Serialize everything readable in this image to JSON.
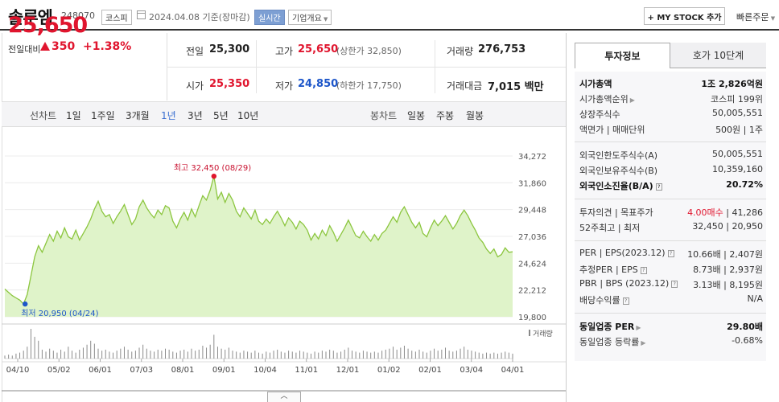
{
  "header": {
    "name": "솔루엠",
    "code": "248070",
    "market": "코스피",
    "date": "2024.04.08",
    "basis": "기준(장마감)",
    "realtime": "실시간",
    "company": "기업개요",
    "mystock": "+ MY STOCK 추가",
    "quick_order": "빠른주문"
  },
  "price": {
    "current": "25,650",
    "change_label": "전일대비",
    "change": "350",
    "rate": "+1.38%"
  },
  "quote": {
    "prev_label": "전일",
    "prev": "25,300",
    "high_label": "고가",
    "high": "25,650",
    "upper": "(상한가 32,850)",
    "volume_label": "거래량",
    "volume": "276,753",
    "open_label": "시가",
    "open": "25,350",
    "low_label": "저가",
    "low": "24,850",
    "lower": "(하한가 17,750)",
    "amount_label": "거래대금",
    "amount": "7,015",
    "amount_unit": "백만"
  },
  "period_bar": {
    "line_label": "선차트",
    "periods": [
      "1일",
      "1주일",
      "3개월",
      "1년",
      "3년",
      "5년",
      "10년"
    ],
    "selected": "1년",
    "candle_label": "봉차트",
    "candles": [
      "일봉",
      "주봉",
      "월봉"
    ]
  },
  "chart_data": {
    "type": "area",
    "x_ticks": [
      "04/10",
      "05/02",
      "06/01",
      "07/03",
      "08/01",
      "09/01",
      "10/04",
      "11/01",
      "12/01",
      "01/02",
      "02/01",
      "03/04",
      "04/01"
    ],
    "y_ticks": [
      "34,272",
      "31,860",
      "29,448",
      "27,036",
      "24,624",
      "22,212",
      "19,800"
    ],
    "ylim": [
      19800,
      34272
    ],
    "max_label": "최고 32,450 (08/29)",
    "min_label": "최저 20,950 (04/24)",
    "volume_label": "거래량",
    "line_color": "#8cc63f",
    "fill_color": "#dff3c9",
    "series": [
      {
        "values": [
          22300,
          22000,
          21700,
          21500,
          21300,
          20950,
          21800,
          23500,
          25200,
          26200,
          25600,
          26400,
          27200,
          26600,
          27500,
          26900,
          27800,
          27000,
          26800,
          27600,
          26700,
          27300,
          27900,
          28600,
          29500,
          30200,
          29300,
          28800,
          29000,
          28200,
          28800,
          29300,
          29900,
          29000,
          28100,
          28600,
          29700,
          30300,
          29600,
          29100,
          28700,
          29400,
          29000,
          29800,
          29600,
          28400,
          27800,
          28600,
          29200,
          28500,
          29500,
          28800,
          29800,
          30700,
          30300,
          31200,
          32450,
          30400,
          31000,
          30100,
          30900,
          30300,
          29300,
          28800,
          29600,
          29100,
          28600,
          29400,
          28400,
          28100,
          28600,
          28200,
          28800,
          29300,
          28700,
          28000,
          28700,
          28300,
          27700,
          28400,
          28100,
          27600,
          26700,
          27300,
          26800,
          27600,
          27100,
          28000,
          27400,
          26600,
          27200,
          27800,
          28500,
          27800,
          27100,
          26900,
          27500,
          27000,
          26600,
          27200,
          26700,
          27300,
          27600,
          28200,
          28800,
          28300,
          29200,
          29700,
          29000,
          28300,
          27800,
          28300,
          27300,
          27000,
          27800,
          28500,
          28000,
          28400,
          28900,
          28300,
          27700,
          28200,
          28900,
          29400,
          28900,
          28200,
          27600,
          26900,
          26500,
          25900,
          25500,
          25900,
          25200,
          25400,
          26000,
          25600,
          25650
        ]
      }
    ],
    "volume": [
      3,
      4,
      3,
      5,
      6,
      8,
      12,
      30,
      22,
      18,
      9,
      7,
      10,
      8,
      6,
      9,
      7,
      12,
      8,
      6,
      9,
      11,
      14,
      18,
      15,
      10,
      8,
      9,
      7,
      6,
      8,
      10,
      12,
      9,
      7,
      8,
      11,
      14,
      10,
      8,
      7,
      9,
      8,
      10,
      9,
      7,
      6,
      8,
      9,
      7,
      10,
      8,
      9,
      13,
      11,
      14,
      24,
      12,
      10,
      9,
      11,
      8,
      7,
      6,
      8,
      7,
      6,
      8,
      6,
      5,
      7,
      6,
      8,
      9,
      7,
      6,
      8,
      7,
      6,
      8,
      7,
      6,
      5,
      7,
      6,
      8,
      7,
      9,
      8,
      6,
      7,
      9,
      11,
      8,
      7,
      6,
      8,
      7,
      6,
      7,
      6,
      8,
      9,
      10,
      12,
      9,
      11,
      13,
      10,
      8,
      7,
      9,
      7,
      6,
      8,
      10,
      8,
      9,
      11,
      8,
      7,
      8,
      10,
      12,
      9,
      8,
      7,
      6,
      5,
      6,
      5,
      6,
      5,
      6,
      7,
      6,
      5
    ]
  },
  "tabs": {
    "invest": "투자정보",
    "orderbook": "호가 10단계"
  },
  "info": {
    "mcap_label": "시가총액",
    "mcap": "1조 2,826억원",
    "mcap_rank_label": "시가총액순위",
    "mcap_rank": "코스피 199위",
    "shares_label": "상장주식수",
    "shares": "50,005,551",
    "par_label": "액면가 | 매매단위",
    "par": "500원 | 1주",
    "foreign_limit_label": "외국인한도주식수(A)",
    "foreign_limit": "50,005,551",
    "foreign_hold_label": "외국인보유주식수(B)",
    "foreign_hold": "10,359,160",
    "foreign_rate_label": "외국인소진율(B/A)",
    "foreign_rate": "20.72%",
    "opinion_label": "투자의견 | 목표주가",
    "opinion": "4.00매수",
    "target": "41,286",
    "wk52_label": "52주최고 | 최저",
    "wk52": "32,450 | 20,950",
    "per_label": "PER | EPS(2023.12)",
    "per": "10.66배 | 2,407원",
    "est_per_label": "추정PER | EPS",
    "est_per": "8.73배 | 2,937원",
    "pbr_label": "PBR | BPS (2023.12)",
    "pbr": "3.13배 | 8,195원",
    "div_label": "배당수익률",
    "div": "N/A",
    "sector_per_label": "동일업종 PER",
    "sector_per": "29.80배",
    "sector_rate_label": "동일업종 등락률",
    "sector_rate": "-0.68%"
  }
}
